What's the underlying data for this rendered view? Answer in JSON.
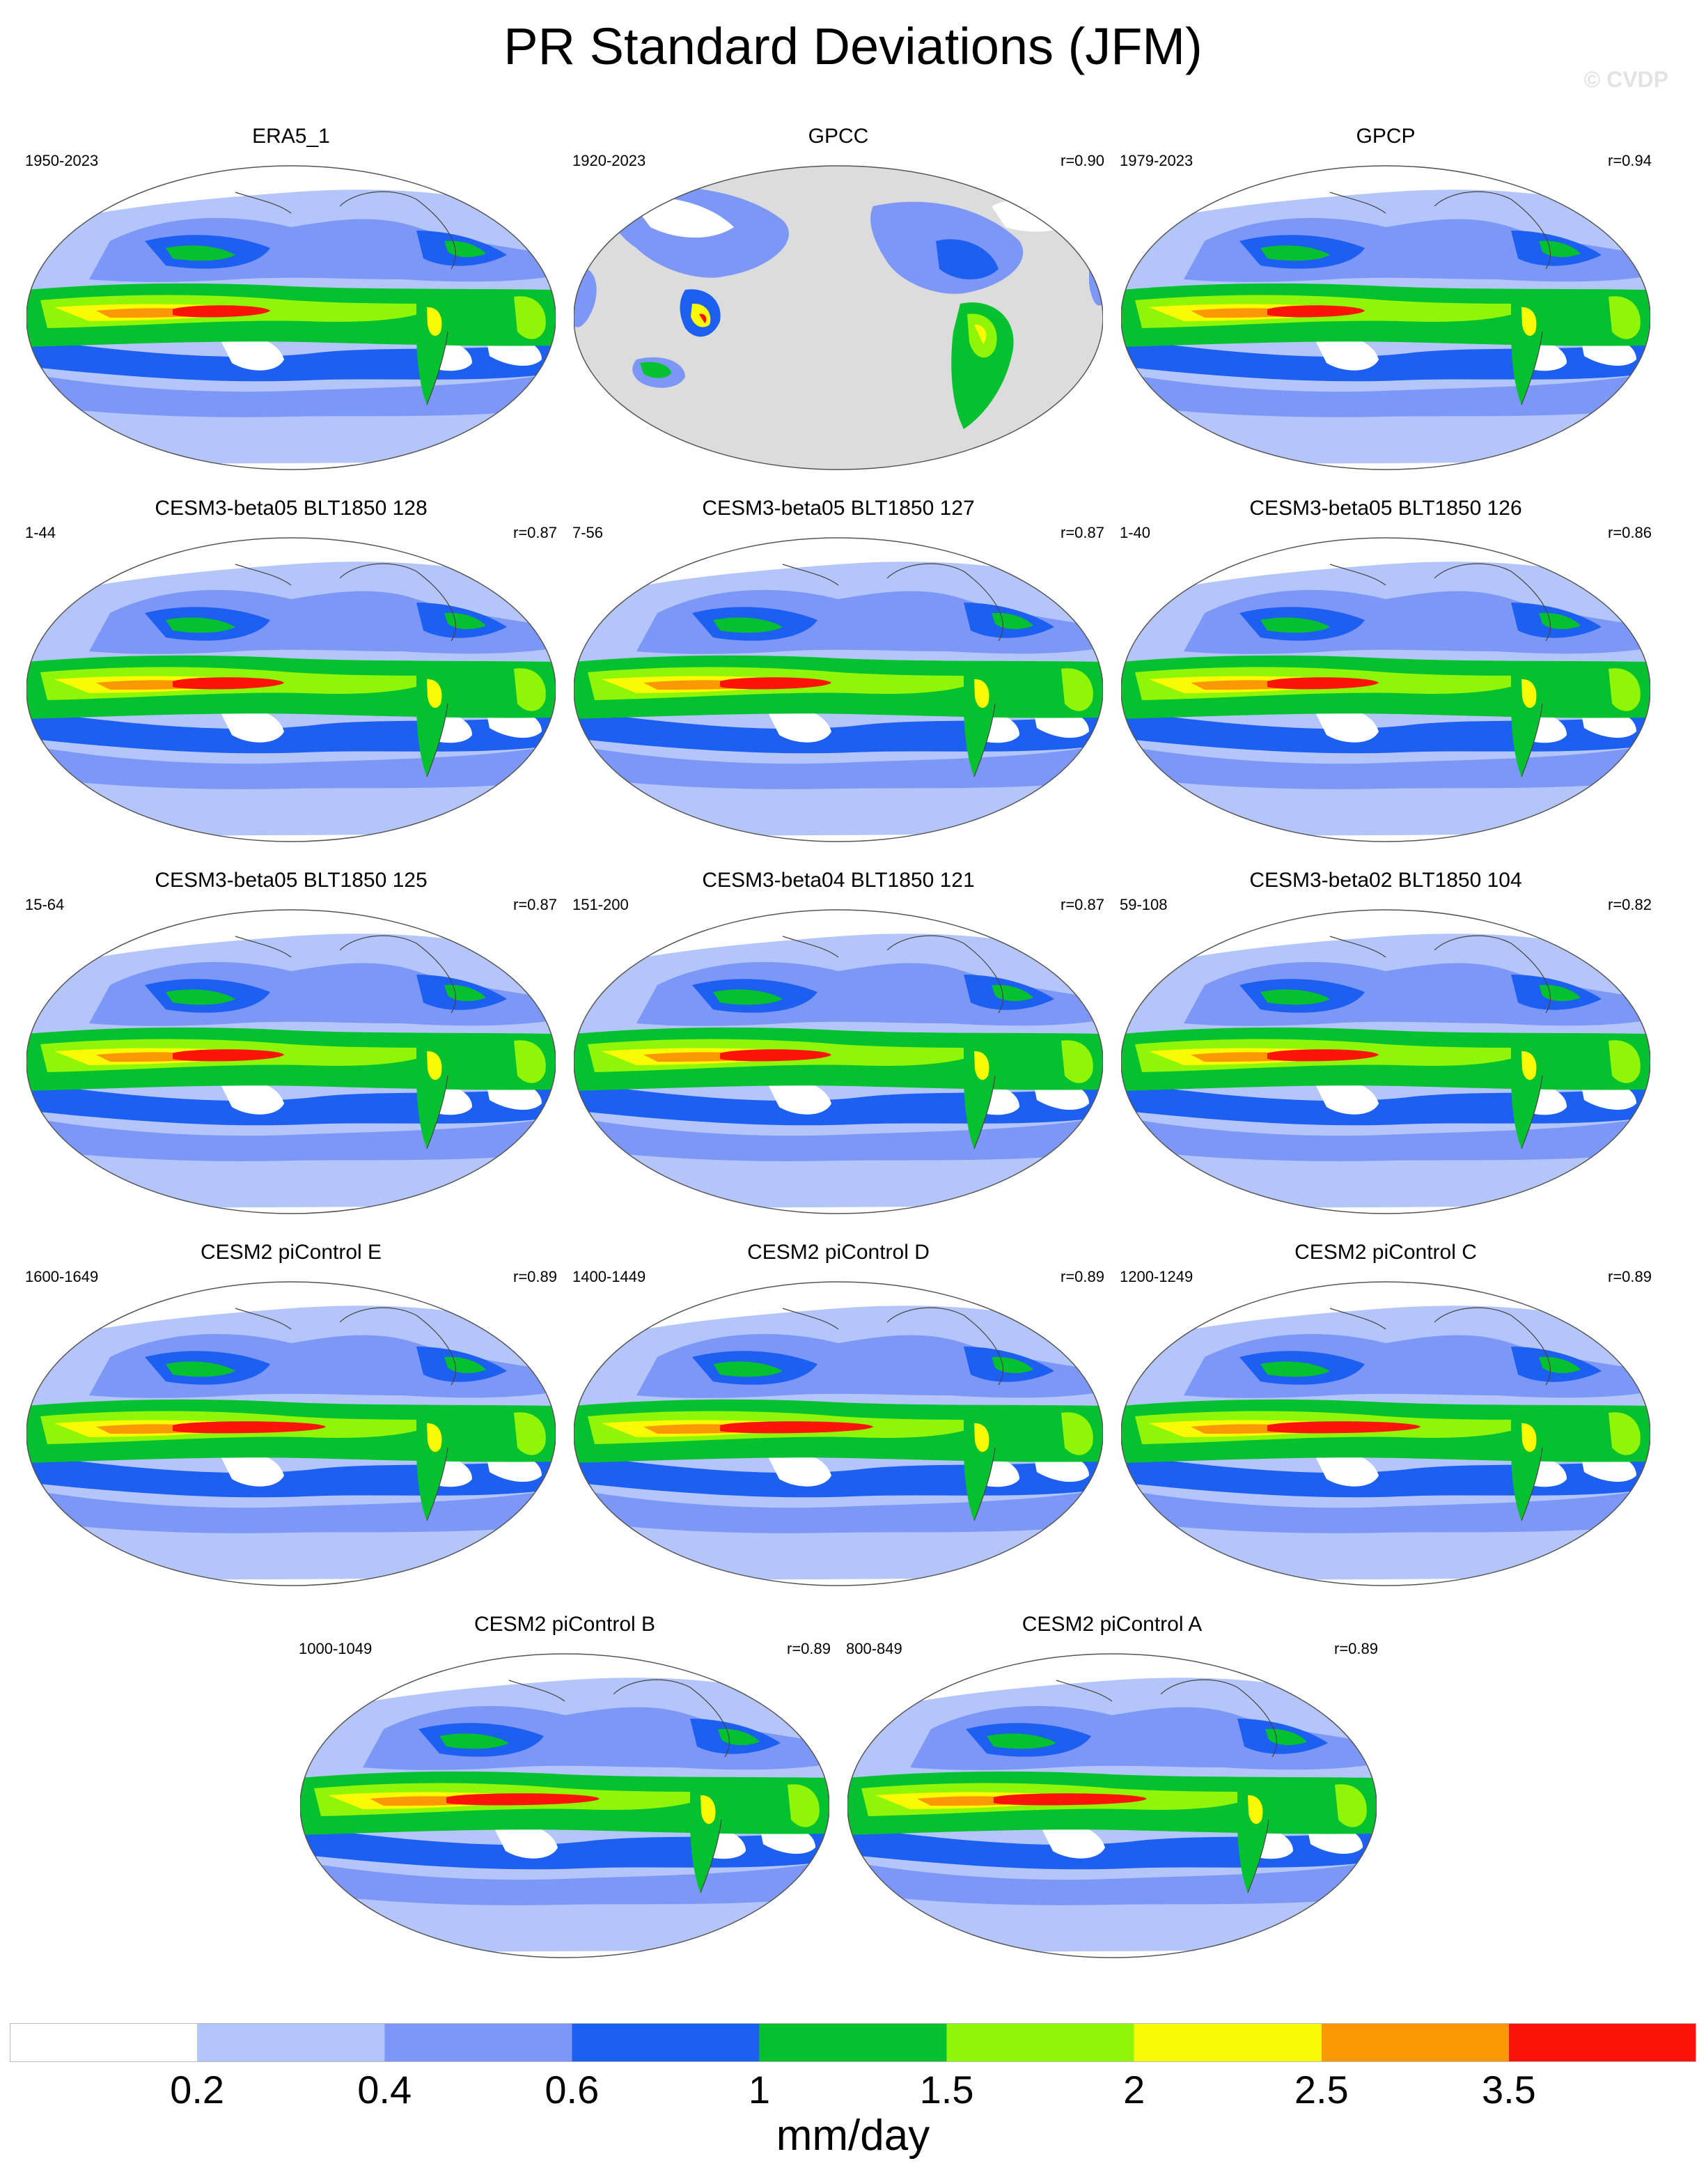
{
  "title": "PR Standard Deviations (JFM)",
  "watermark": "© CVDP",
  "colorbar": {
    "unit": "mm/day",
    "tick_labels": [
      "0.2",
      "0.4",
      "0.6",
      "1",
      "1.5",
      "2",
      "2.5",
      "3.5"
    ],
    "colors": [
      "#ffffff",
      "#b4c5f9",
      "#7d97f6",
      "#1d5ff0",
      "#06c12f",
      "#8ff608",
      "#fafa04",
      "#fc9705",
      "#fb1407"
    ]
  },
  "panels": [
    {
      "title": "ERA5_1",
      "years": "1950-2023",
      "corr": ""
    },
    {
      "title": "GPCC",
      "years": "1920-2023",
      "corr": "r=0.90"
    },
    {
      "title": "GPCP",
      "years": "1979-2023",
      "corr": "r=0.94"
    },
    {
      "title": "CESM3-beta05 BLT1850 128",
      "years": "1-44",
      "corr": "r=0.87"
    },
    {
      "title": "CESM3-beta05 BLT1850 127",
      "years": "7-56",
      "corr": "r=0.87"
    },
    {
      "title": "CESM3-beta05 BLT1850 126",
      "years": "1-40",
      "corr": "r=0.86"
    },
    {
      "title": "CESM3-beta05 BLT1850 125",
      "years": "15-64",
      "corr": "r=0.87"
    },
    {
      "title": "CESM3-beta04 BLT1850 121",
      "years": "151-200",
      "corr": "r=0.87"
    },
    {
      "title": "CESM3-beta02 BLT1850 104",
      "years": "59-108",
      "corr": "r=0.82"
    },
    {
      "title": "CESM2 piControl E",
      "years": "1600-1649",
      "corr": "r=0.89"
    },
    {
      "title": "CESM2 piControl D",
      "years": "1400-1449",
      "corr": "r=0.89"
    },
    {
      "title": "CESM2 piControl C",
      "years": "1200-1249",
      "corr": "r=0.89"
    },
    {
      "title": "CESM2 piControl B",
      "years": "1000-1049",
      "corr": "r=0.89"
    },
    {
      "title": "CESM2 piControl A",
      "years": "800-849",
      "corr": "r=0.89"
    }
  ]
}
